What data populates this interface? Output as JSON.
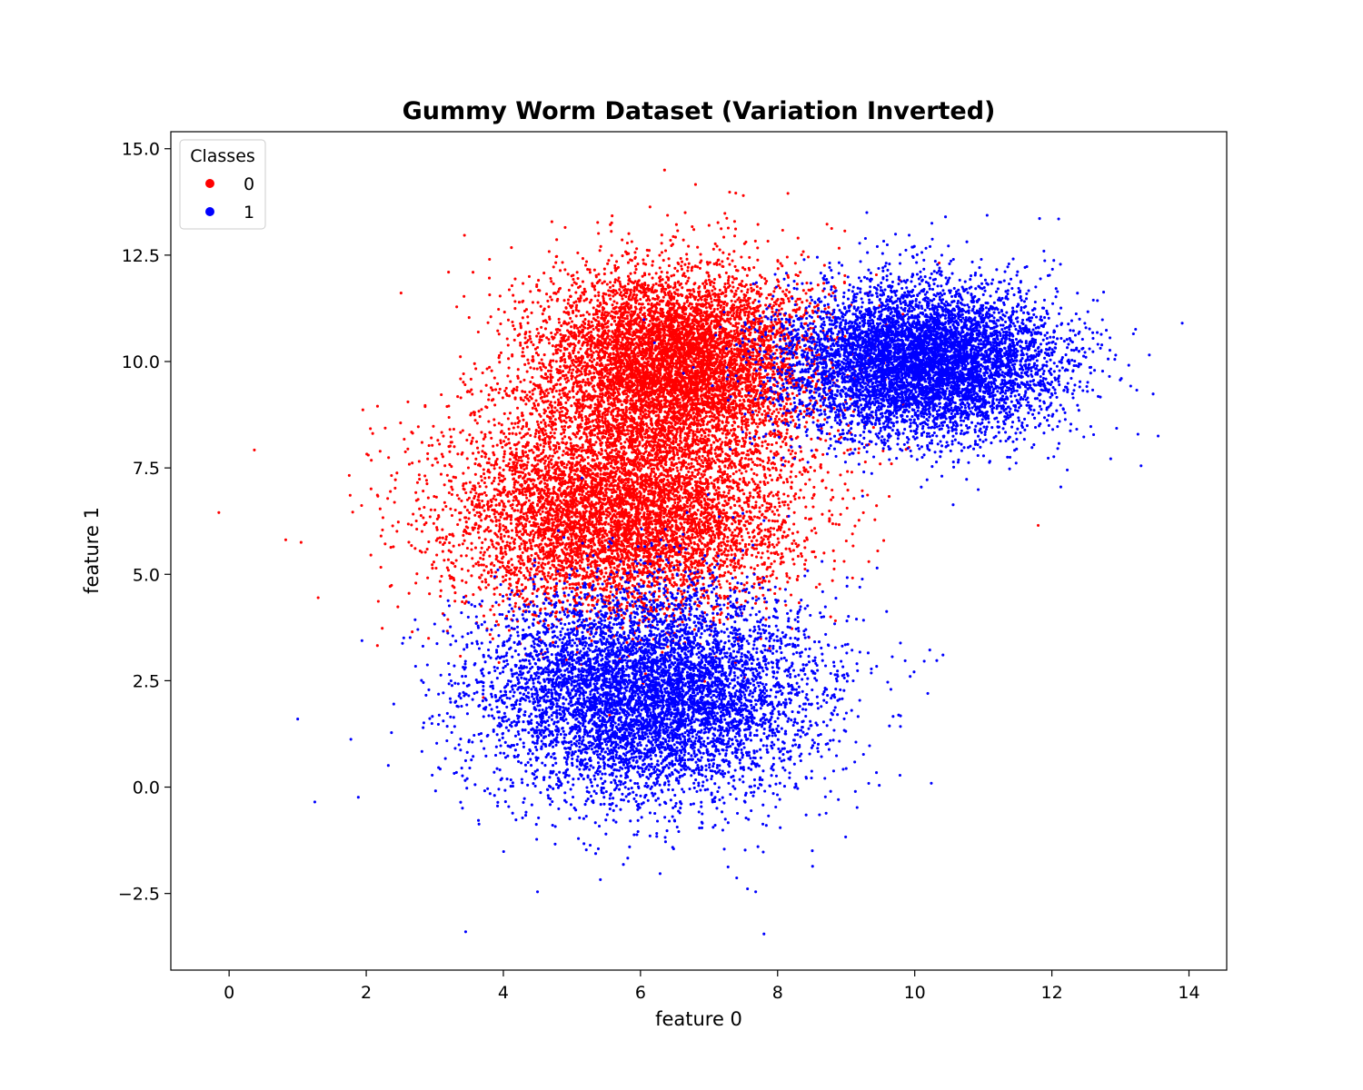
{
  "chart_data": {
    "type": "scatter",
    "title": "Gummy Worm Dataset (Variation Inverted)",
    "xlabel": "feature 0",
    "ylabel": "feature 1",
    "xlim": [
      -0.85,
      14.55
    ],
    "ylim": [
      -4.3,
      15.4
    ],
    "xticks": [
      0,
      2,
      4,
      6,
      8,
      10,
      12,
      14
    ],
    "yticks": [
      -2.5,
      0.0,
      2.5,
      5.0,
      7.5,
      10.0,
      12.5,
      15.0
    ],
    "xtick_labels": [
      "0",
      "2",
      "4",
      "6",
      "8",
      "10",
      "12",
      "14"
    ],
    "ytick_labels": [
      "−2.5",
      "0.0",
      "2.5",
      "5.0",
      "7.5",
      "10.0",
      "12.5",
      "15.0"
    ],
    "legend": {
      "title": "Classes",
      "placement": "upper-left"
    },
    "series": [
      {
        "name": "0",
        "color": "#ff0000",
        "clusters": [
          {
            "center": [
              6.5,
              10.0
            ],
            "std": [
              1.0,
              1.1
            ],
            "count": 7000
          },
          {
            "center": [
              5.7,
              6.5
            ],
            "std": [
              1.25,
              1.25
            ],
            "count": 7000
          }
        ],
        "outliers": [
          [
            -0.15,
            6.45
          ],
          [
            6.35,
            14.5
          ],
          [
            7.5,
            13.9
          ],
          [
            8.15,
            13.95
          ],
          [
            11.8,
            6.15
          ],
          [
            1.05,
            5.75
          ],
          [
            1.3,
            4.45
          ],
          [
            3.2,
            12.1
          ],
          [
            4.9,
            13.15
          ],
          [
            7.0,
            13.2
          ]
        ]
      },
      {
        "name": "1",
        "color": "#0000ff",
        "clusters": [
          {
            "center": [
              10.1,
              10.0
            ],
            "std": [
              1.0,
              0.9
            ],
            "count": 7000
          },
          {
            "center": [
              6.1,
              2.2
            ],
            "std": [
              1.2,
              1.25
            ],
            "count": 7000
          }
        ],
        "outliers": [
          [
            13.9,
            10.9
          ],
          [
            13.55,
            8.25
          ],
          [
            13.3,
            7.55
          ],
          [
            3.45,
            -3.4
          ],
          [
            7.8,
            -3.45
          ],
          [
            1.25,
            -0.35
          ],
          [
            1.0,
            1.6
          ],
          [
            12.1,
            13.35
          ],
          [
            10.45,
            13.4
          ],
          [
            9.3,
            13.5
          ]
        ]
      }
    ]
  }
}
